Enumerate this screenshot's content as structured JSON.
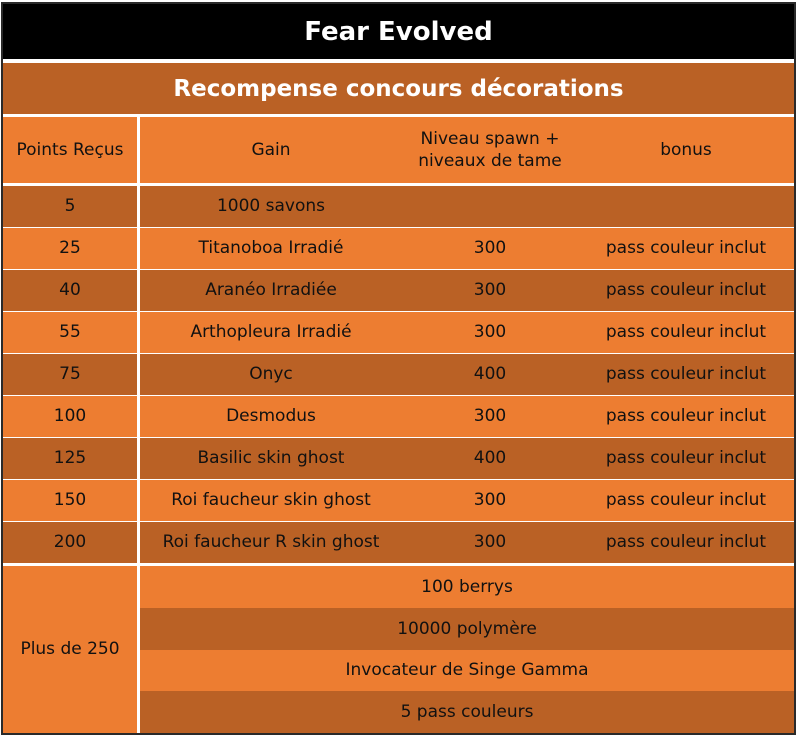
{
  "title": "Fear Evolved",
  "subtitle": "Recompense concours décorations",
  "headers": {
    "points": "Points Reçus",
    "gain": "Gain",
    "niveau": "Niveau spawn + niveaux de tame",
    "bonus": "bonus"
  },
  "rows": [
    {
      "points": "5",
      "gain": "1000 savons",
      "niveau": "",
      "bonus": ""
    },
    {
      "points": "25",
      "gain": "Titanoboa Irradié",
      "niveau": "300",
      "bonus": "pass couleur inclut"
    },
    {
      "points": "40",
      "gain": "Aranéo Irradiée",
      "niveau": "300",
      "bonus": "pass couleur inclut"
    },
    {
      "points": "55",
      "gain": "Arthopleura Irradié",
      "niveau": "300",
      "bonus": "pass couleur inclut"
    },
    {
      "points": "75",
      "gain": "Onyc",
      "niveau": "400",
      "bonus": "pass couleur inclut"
    },
    {
      "points": "100",
      "gain": "Desmodus",
      "niveau": "300",
      "bonus": "pass couleur inclut"
    },
    {
      "points": "125",
      "gain": "Basilic skin ghost",
      "niveau": "400",
      "bonus": "pass couleur inclut"
    },
    {
      "points": "150",
      "gain": "Roi faucheur skin ghost",
      "niveau": "300",
      "bonus": "pass couleur inclut"
    },
    {
      "points": "200",
      "gain": "Roi faucheur R skin ghost",
      "niveau": "300",
      "bonus": "pass couleur inclut"
    }
  ],
  "final": {
    "points": "Plus de 250",
    "rewards": [
      "100 berrys",
      "10000 polymère",
      "Invocateur de Singe Gamma",
      "5 pass couleurs"
    ]
  },
  "colors": {
    "light": "#ED7D31",
    "dark": "#BA6125",
    "title_bg": "#000000"
  }
}
